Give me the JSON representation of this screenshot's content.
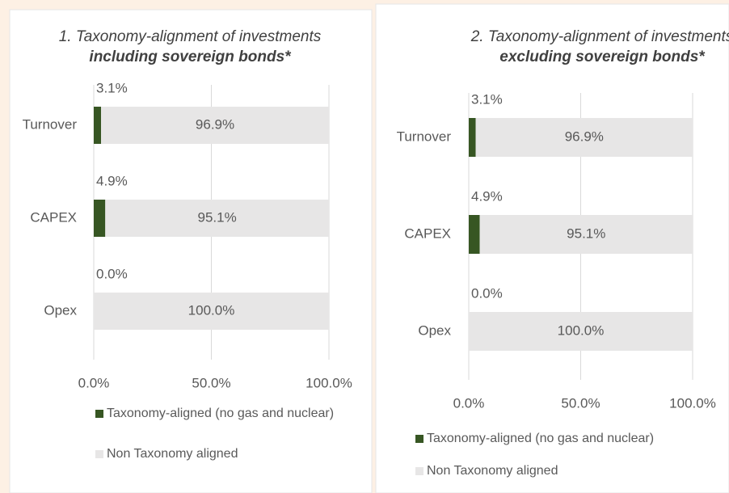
{
  "chart_data": [
    {
      "type": "bar",
      "orientation": "horizontal",
      "stacked": true,
      "title": [
        "1. Taxonomy-alignment of investments",
        "including sovereign bonds*"
      ],
      "categories": [
        "Turnover",
        "CAPEX",
        "Opex"
      ],
      "series": [
        {
          "name": "Taxonomy-aligned (no gas and nuclear)",
          "color": "#375623",
          "values": [
            3.1,
            4.9,
            0.0
          ],
          "value_labels": [
            "3.1%",
            "4.9%",
            "0.0%"
          ]
        },
        {
          "name": "Non Taxonomy aligned",
          "color": "#e7e6e6",
          "values": [
            96.9,
            95.1,
            100.0
          ],
          "value_labels": [
            "96.9%",
            "95.1%",
            "100.0%"
          ]
        }
      ],
      "xlim": [
        0,
        100
      ],
      "xticks": [
        {
          "value": 0,
          "label": "0.0%"
        },
        {
          "value": 50,
          "label": "50.0%"
        },
        {
          "value": 100,
          "label": "100.0%"
        }
      ],
      "grid": true,
      "legend": "bottom"
    },
    {
      "type": "bar",
      "orientation": "horizontal",
      "stacked": true,
      "title": [
        "2. Taxonomy-alignment of investments",
        "excluding sovereign bonds*"
      ],
      "categories": [
        "Turnover",
        "CAPEX",
        "Opex"
      ],
      "series": [
        {
          "name": "Taxonomy-aligned (no gas and nuclear)",
          "color": "#375623",
          "values": [
            3.1,
            4.9,
            0.0
          ],
          "value_labels": [
            "3.1%",
            "4.9%",
            "0.0%"
          ]
        },
        {
          "name": "Non Taxonomy aligned",
          "color": "#e7e6e6",
          "values": [
            96.9,
            95.1,
            100.0
          ],
          "value_labels": [
            "96.9%",
            "95.1%",
            "100.0%"
          ]
        }
      ],
      "xlim": [
        0,
        100
      ],
      "xticks": [
        {
          "value": 0,
          "label": "0.0%"
        },
        {
          "value": 50,
          "label": "50.0%"
        },
        {
          "value": 100,
          "label": "100.0%"
        }
      ],
      "grid": true,
      "legend": "bottom"
    }
  ]
}
